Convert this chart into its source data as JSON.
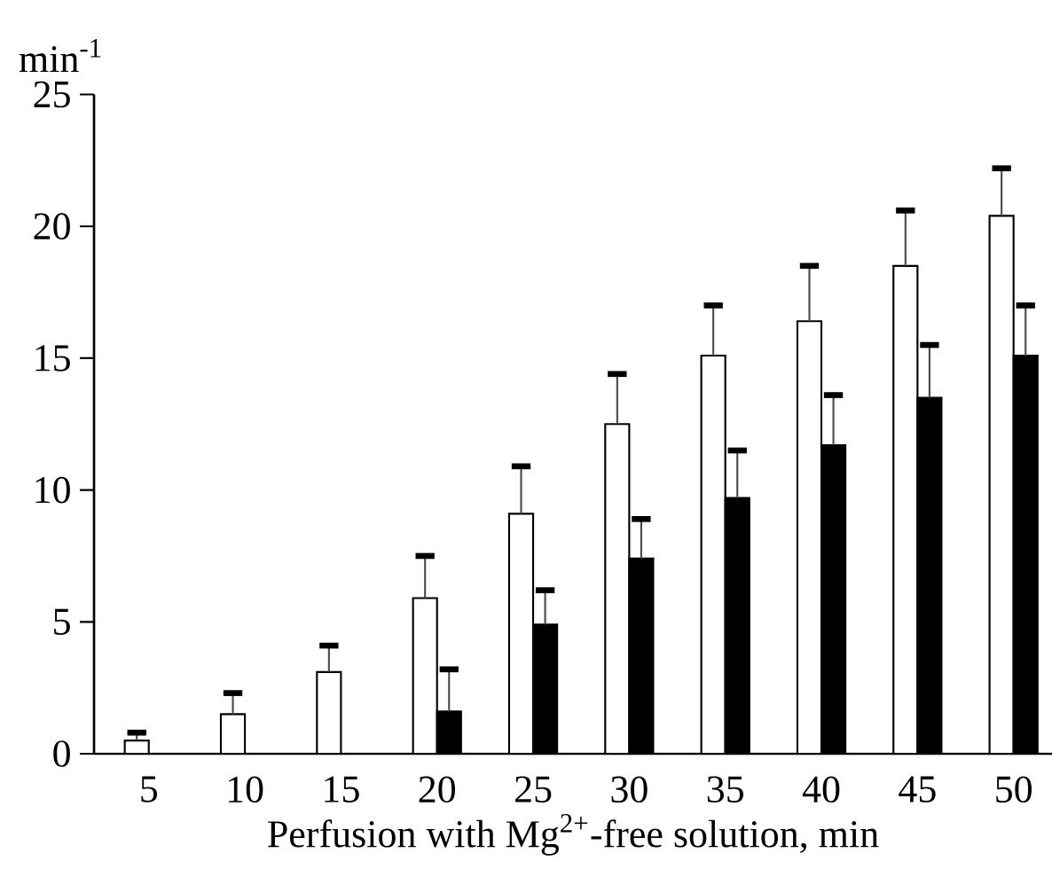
{
  "chart_data": {
    "type": "bar",
    "xlabel": "Perfusion with Mg$^{2+}$-free solution, min",
    "ylabel": "min$^{-1}$",
    "categories": [
      "5",
      "10",
      "15",
      "20",
      "25",
      "30",
      "35",
      "40",
      "45",
      "50"
    ],
    "series": [
      {
        "color": "#ffffff",
        "values": [
          0.5,
          1.5,
          3.1,
          5.9,
          9.1,
          12.5,
          15.1,
          16.4,
          18.5,
          20.4
        ],
        "errors": [
          [
            0.5,
            0.8
          ],
          [
            1.5,
            2.3
          ],
          [
            3.1,
            4.1
          ],
          [
            5.9,
            7.5
          ],
          [
            9.1,
            10.9
          ],
          [
            12.5,
            14.4
          ],
          [
            15.1,
            17.0
          ],
          [
            16.4,
            18.5
          ],
          [
            18.5,
            20.6
          ],
          [
            20.4,
            22.2
          ]
        ]
      },
      {
        "color": "#000000",
        "values": [
          0,
          0,
          0,
          1.6,
          4.9,
          7.4,
          9.7,
          11.7,
          13.5,
          15.1
        ],
        "errors": [
          null,
          null,
          null,
          [
            1.6,
            3.2
          ],
          [
            4.9,
            6.2
          ],
          [
            7.4,
            8.9
          ],
          [
            9.7,
            11.5
          ],
          [
            11.7,
            13.6
          ],
          [
            13.5,
            15.5
          ],
          [
            15.1,
            17.0
          ]
        ]
      }
    ],
    "ylim": [
      0,
      25
    ],
    "yticks": [
      0,
      5,
      10,
      15,
      20,
      25
    ],
    "grid": false
  }
}
